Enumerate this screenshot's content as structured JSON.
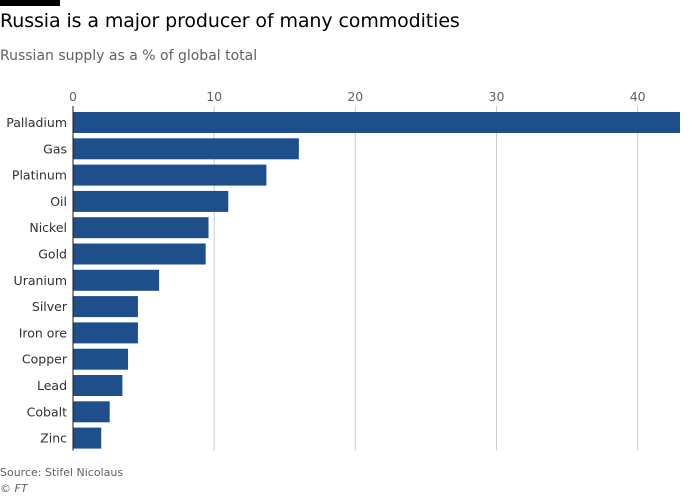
{
  "header": {
    "title": "Russia is a major producer of many commodities",
    "subtitle": "Russian supply as a % of global total"
  },
  "footer": {
    "source": "Source: Stifel Nicolaus",
    "credit": "© FT"
  },
  "colors": {
    "bar": "#1e4f8b",
    "grid": "#cccccc",
    "axis": "#1a1a1a"
  },
  "chart_data": {
    "type": "bar",
    "orientation": "horizontal",
    "title": "Russia is a major producer of many commodities",
    "subtitle": "Russian supply as a % of global total",
    "xlabel": "",
    "ylabel": "",
    "xlim": [
      0,
      43
    ],
    "xticks": [
      0,
      10,
      20,
      30,
      40
    ],
    "xtick_labels": [
      "0",
      "10",
      "20",
      "30",
      "40"
    ],
    "axis_position": "top",
    "grid": true,
    "categories": [
      "Palladium",
      "Gas",
      "Platinum",
      "Oil",
      "Nickel",
      "Gold",
      "Uranium",
      "Silver",
      "Iron ore",
      "Copper",
      "Lead",
      "Cobalt",
      "Zinc"
    ],
    "values": [
      43,
      16,
      13.7,
      11,
      9.6,
      9.4,
      6.1,
      4.6,
      4.6,
      3.9,
      3.5,
      2.6,
      2
    ]
  }
}
